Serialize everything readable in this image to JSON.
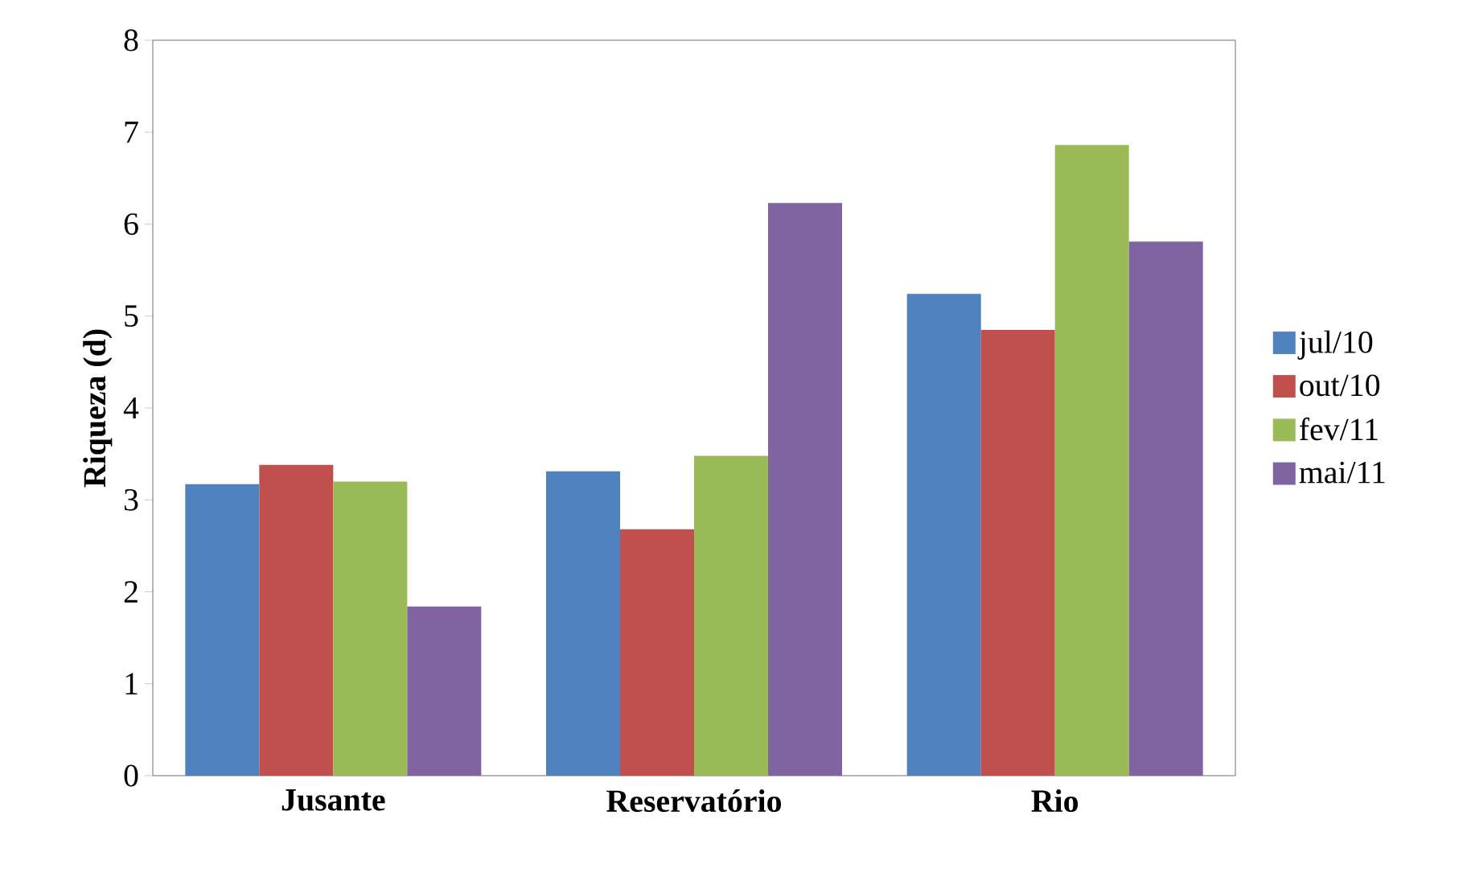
{
  "chart_data": {
    "type": "bar",
    "ylabel": "Riqueza (d)",
    "categories": [
      "Jusante",
      "Reservatório",
      "Rio"
    ],
    "series": [
      {
        "name": "jul/10",
        "color": "#4f81bd",
        "values": [
          3.17,
          3.31,
          5.24
        ]
      },
      {
        "name": "out/10",
        "color": "#c0504d",
        "values": [
          3.38,
          2.68,
          4.85
        ]
      },
      {
        "name": "fev/11",
        "color": "#9bbb59",
        "values": [
          3.2,
          3.48,
          6.86
        ]
      },
      {
        "name": "mai/11",
        "color": "#8064a2",
        "values": [
          1.84,
          6.23,
          5.81
        ]
      }
    ],
    "ylim": [
      0,
      8
    ],
    "yticks": [
      0,
      1,
      2,
      3,
      4,
      5,
      6,
      7,
      8
    ],
    "legend": "right",
    "grid": false
  }
}
